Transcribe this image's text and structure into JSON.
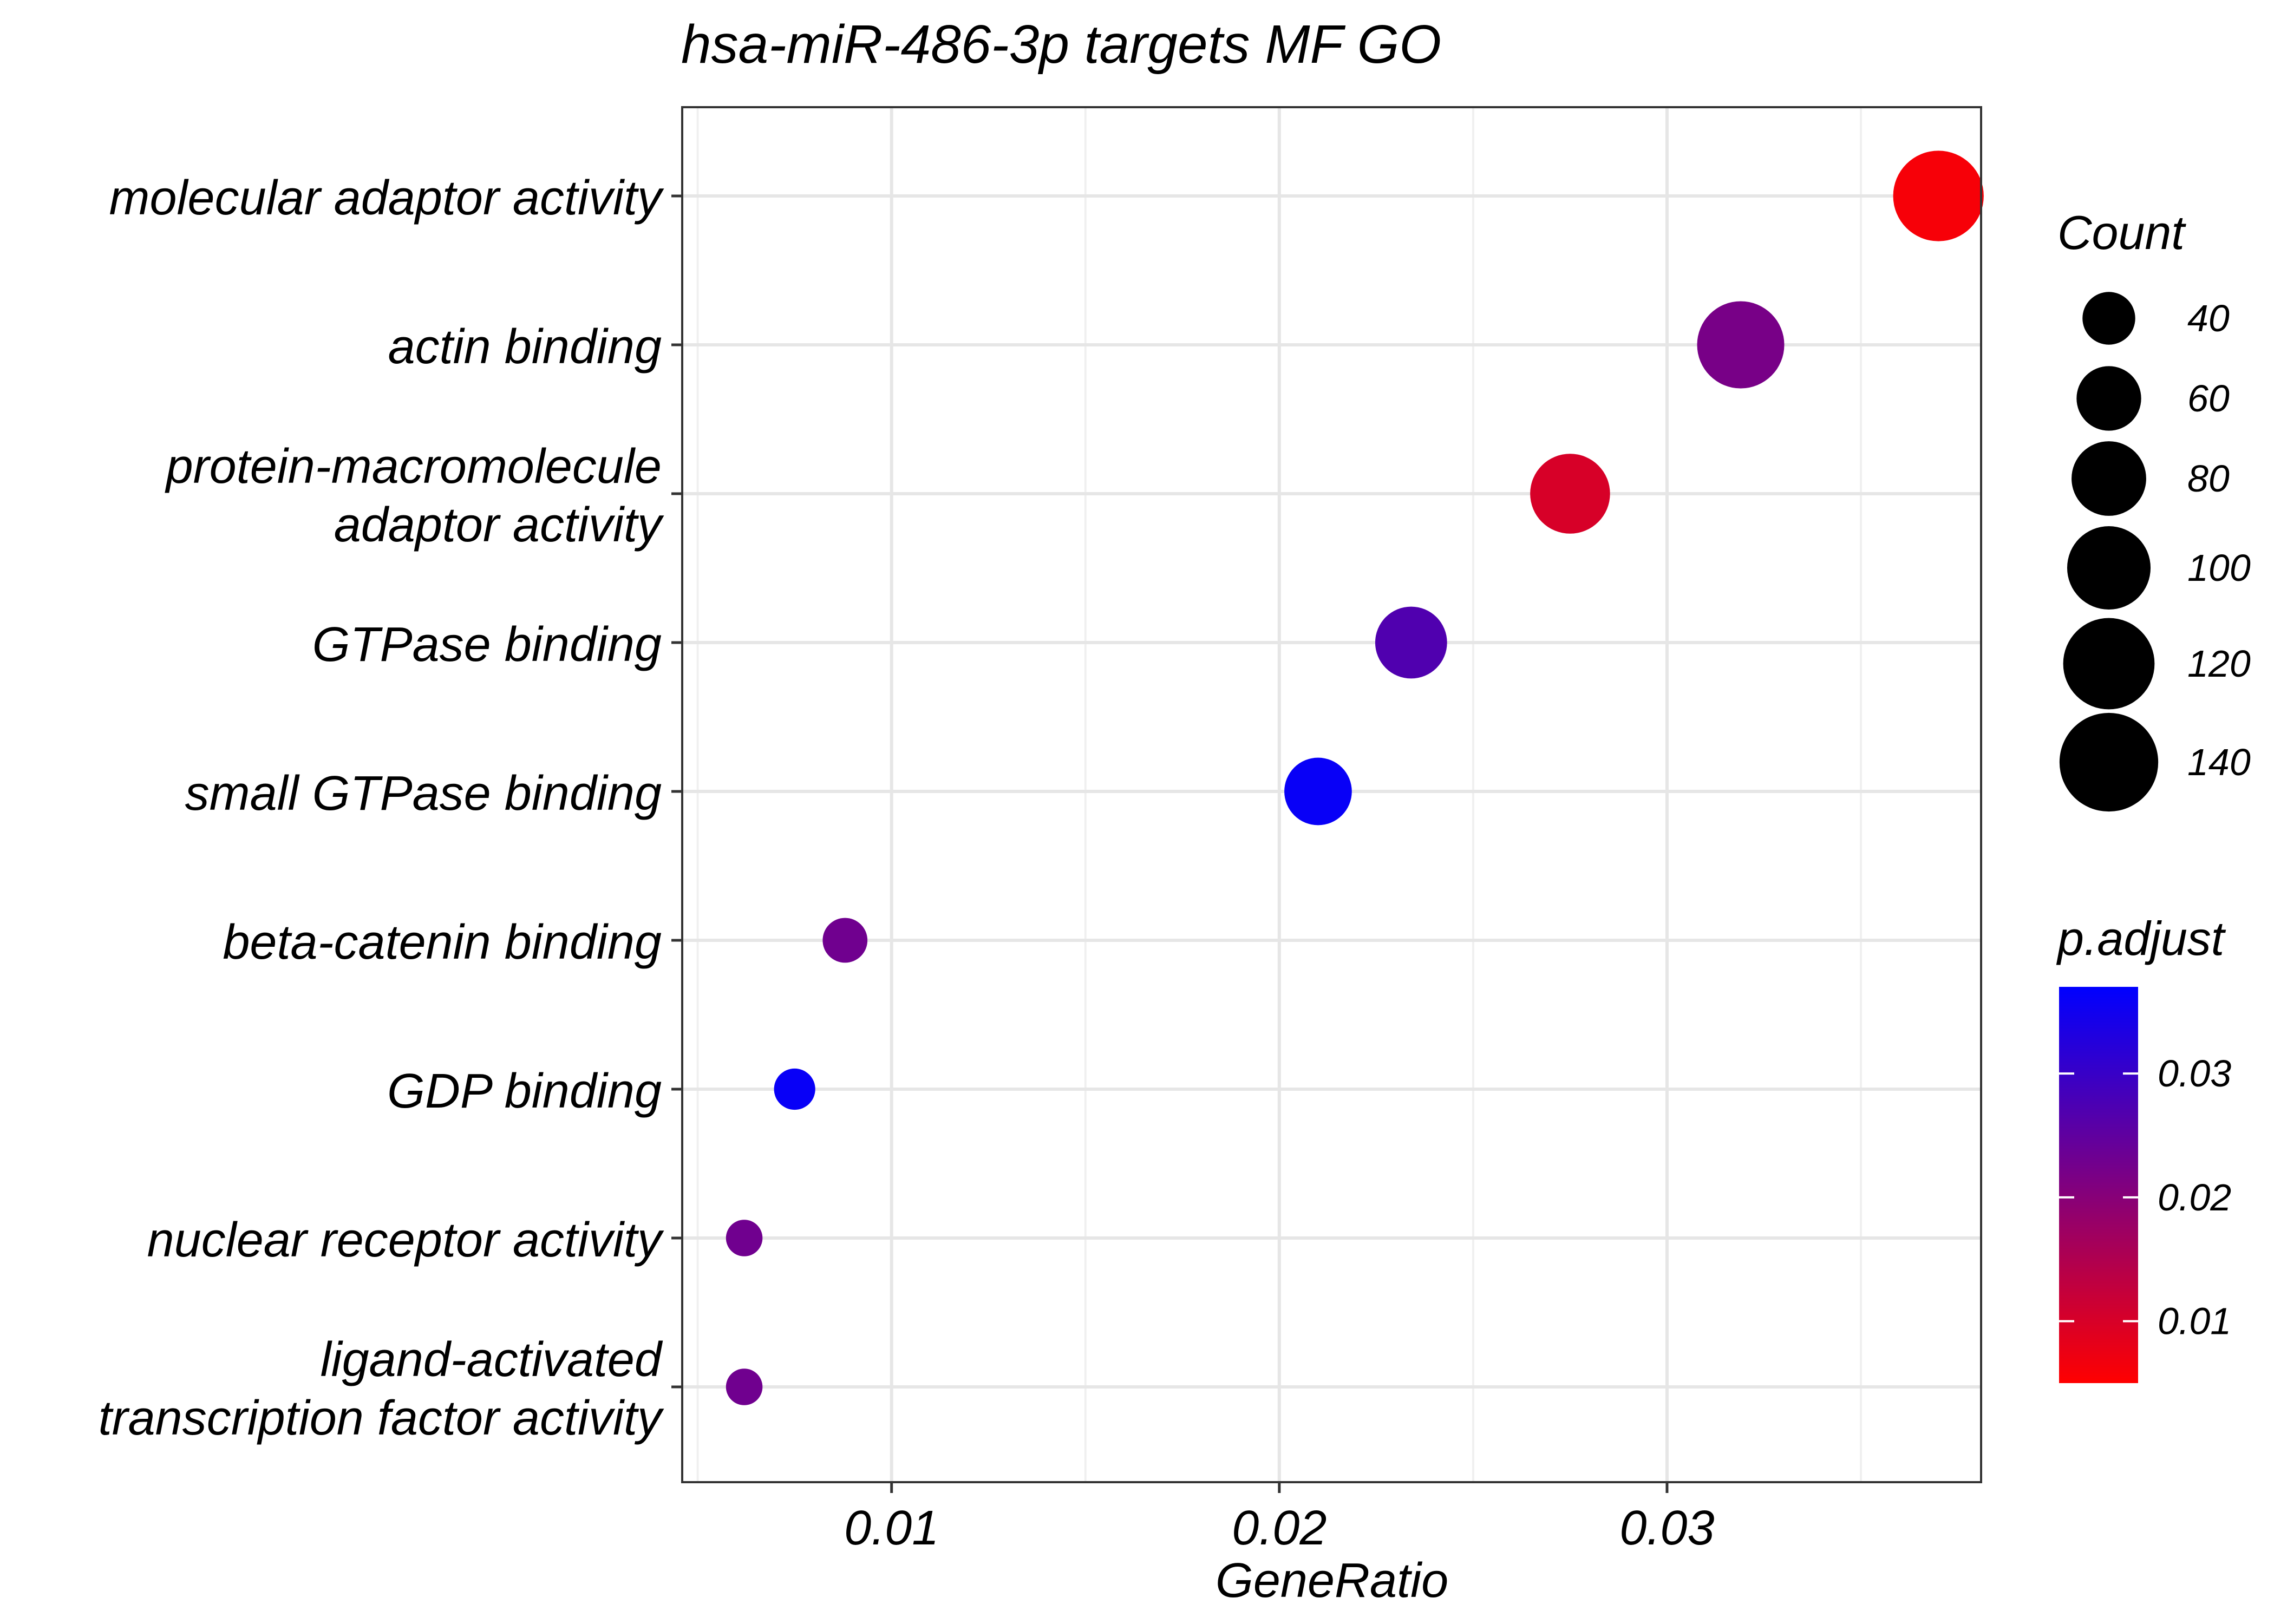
{
  "chart_data": {
    "type": "scatter",
    "title": "hsa-miR-486-3p targets MF GO",
    "xlabel": "GeneRatio",
    "ylabel": "",
    "xlim": [
      0.0046,
      0.0381
    ],
    "x_ticks": [
      0.01,
      0.02,
      0.03
    ],
    "x_tick_labels": [
      "0.01",
      "0.02",
      "0.03"
    ],
    "grid": true,
    "categories": [
      "molecular adaptor activity",
      "actin binding",
      "protein-macromolecule adaptor activity",
      "GTPase binding",
      "small GTPase binding",
      "beta-catenin binding",
      "GDP binding",
      "nuclear receptor activity",
      "ligand-activated transcription factor activity"
    ],
    "category_lines": [
      [
        "molecular adaptor activity"
      ],
      [
        "actin binding"
      ],
      [
        "protein-macromolecule",
        "adaptor activity"
      ],
      [
        "GTPase binding"
      ],
      [
        "small GTPase binding"
      ],
      [
        "beta-catenin binding"
      ],
      [
        "GDP binding"
      ],
      [
        "nuclear receptor activity"
      ],
      [
        "ligand-activated",
        "transcription factor activity"
      ]
    ],
    "points": [
      {
        "category": "molecular adaptor activity",
        "gene_ratio": 0.037,
        "count": 135,
        "p_adjust": 0.006
      },
      {
        "category": "actin binding",
        "gene_ratio": 0.0319,
        "count": 125,
        "p_adjust": 0.022
      },
      {
        "category": "protein-macromolecule adaptor activity",
        "gene_ratio": 0.0275,
        "count": 105,
        "p_adjust": 0.01
      },
      {
        "category": "GTPase binding",
        "gene_ratio": 0.0234,
        "count": 85,
        "p_adjust": 0.027
      },
      {
        "category": "small GTPase binding",
        "gene_ratio": 0.021,
        "count": 75,
        "p_adjust": 0.036
      },
      {
        "category": "beta-catenin binding",
        "gene_ratio": 0.0088,
        "count": 33,
        "p_adjust": 0.023
      },
      {
        "category": "GDP binding",
        "gene_ratio": 0.0075,
        "count": 28,
        "p_adjust": 0.036
      },
      {
        "category": "nuclear receptor activity",
        "gene_ratio": 0.0062,
        "count": 22,
        "p_adjust": 0.023
      },
      {
        "category": "ligand-activated transcription factor activity",
        "gene_ratio": 0.0062,
        "count": 22,
        "p_adjust": 0.023
      }
    ],
    "size_legend": {
      "title": "Count",
      "values": [
        40,
        60,
        80,
        100,
        120,
        140
      ],
      "labels": [
        "40",
        "60",
        "80",
        "100",
        "120",
        "140"
      ]
    },
    "color_legend": {
      "title": "p.adjust",
      "range": [
        0.005,
        0.037
      ],
      "ticks": [
        0.01,
        0.02,
        0.03
      ],
      "tick_labels": [
        "0.01",
        "0.02",
        "0.03"
      ],
      "low_color": "#FF0000",
      "high_color": "#0000FF"
    }
  }
}
